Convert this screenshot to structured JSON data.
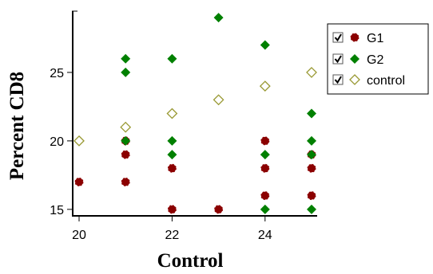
{
  "chart_data": {
    "type": "scatter",
    "title": "",
    "xlabel": "Control",
    "ylabel": "Percent CD8",
    "xlim": [
      20,
      25
    ],
    "ylim": [
      14.7,
      29.3
    ],
    "xticks": [
      20,
      22,
      24
    ],
    "yticks": [
      15,
      20,
      25
    ],
    "grid": false,
    "legend_position": "right",
    "series": [
      {
        "name": "G1",
        "marker": "circle",
        "color": "#8b0000",
        "points": [
          [
            20,
            17
          ],
          [
            21,
            20
          ],
          [
            21,
            19
          ],
          [
            21,
            17
          ],
          [
            22,
            18
          ],
          [
            22,
            15
          ],
          [
            23,
            15
          ],
          [
            24,
            20
          ],
          [
            24,
            18
          ],
          [
            24,
            16
          ],
          [
            25,
            19
          ],
          [
            25,
            18
          ],
          [
            25,
            16
          ]
        ]
      },
      {
        "name": "G2",
        "marker": "diamond",
        "color": "#008000",
        "points": [
          [
            21,
            26
          ],
          [
            21,
            25
          ],
          [
            21,
            20
          ],
          [
            22,
            26
          ],
          [
            22,
            20
          ],
          [
            22,
            19
          ],
          [
            23,
            29
          ],
          [
            24,
            27
          ],
          [
            24,
            19
          ],
          [
            24,
            15
          ],
          [
            25,
            22
          ],
          [
            25,
            20
          ],
          [
            25,
            19
          ],
          [
            25,
            15
          ]
        ]
      },
      {
        "name": "control",
        "marker": "open-diamond",
        "color": "#999933",
        "points": [
          [
            20,
            20
          ],
          [
            21,
            21
          ],
          [
            22,
            22
          ],
          [
            23,
            23
          ],
          [
            24,
            24
          ],
          [
            25,
            25
          ]
        ]
      }
    ]
  }
}
